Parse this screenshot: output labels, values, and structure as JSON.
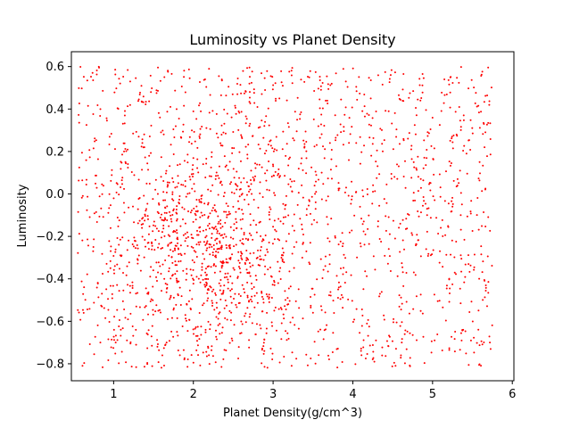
{
  "chart_data": {
    "type": "scatter",
    "title": "Luminosity vs Planet Density",
    "xlabel": "Planet Density(g/cm^3)",
    "ylabel": "Luminosity",
    "xlim": [
      0.47,
      6.02
    ],
    "ylim": [
      -0.88,
      0.67
    ],
    "x_ticks": [
      1,
      2,
      3,
      4,
      5,
      6
    ],
    "y_ticks": [
      -0.8,
      -0.6,
      -0.4,
      -0.2,
      0.0,
      0.2,
      0.4,
      0.6
    ],
    "x_tick_labels": [
      "1",
      "2",
      "3",
      "4",
      "5",
      "6"
    ],
    "y_tick_labels": [
      "−0.8",
      "−0.6",
      "−0.4",
      "−0.2",
      "0.0",
      "0.2",
      "0.4",
      "0.6"
    ],
    "grid": false,
    "marker_color": "#ff0000",
    "series": [
      {
        "point_count": 2200,
        "x_range": [
          0.55,
          5.75
        ],
        "y_range": [
          -0.82,
          0.6
        ],
        "density_peak": [
          2.2,
          -0.25
        ]
      }
    ]
  }
}
